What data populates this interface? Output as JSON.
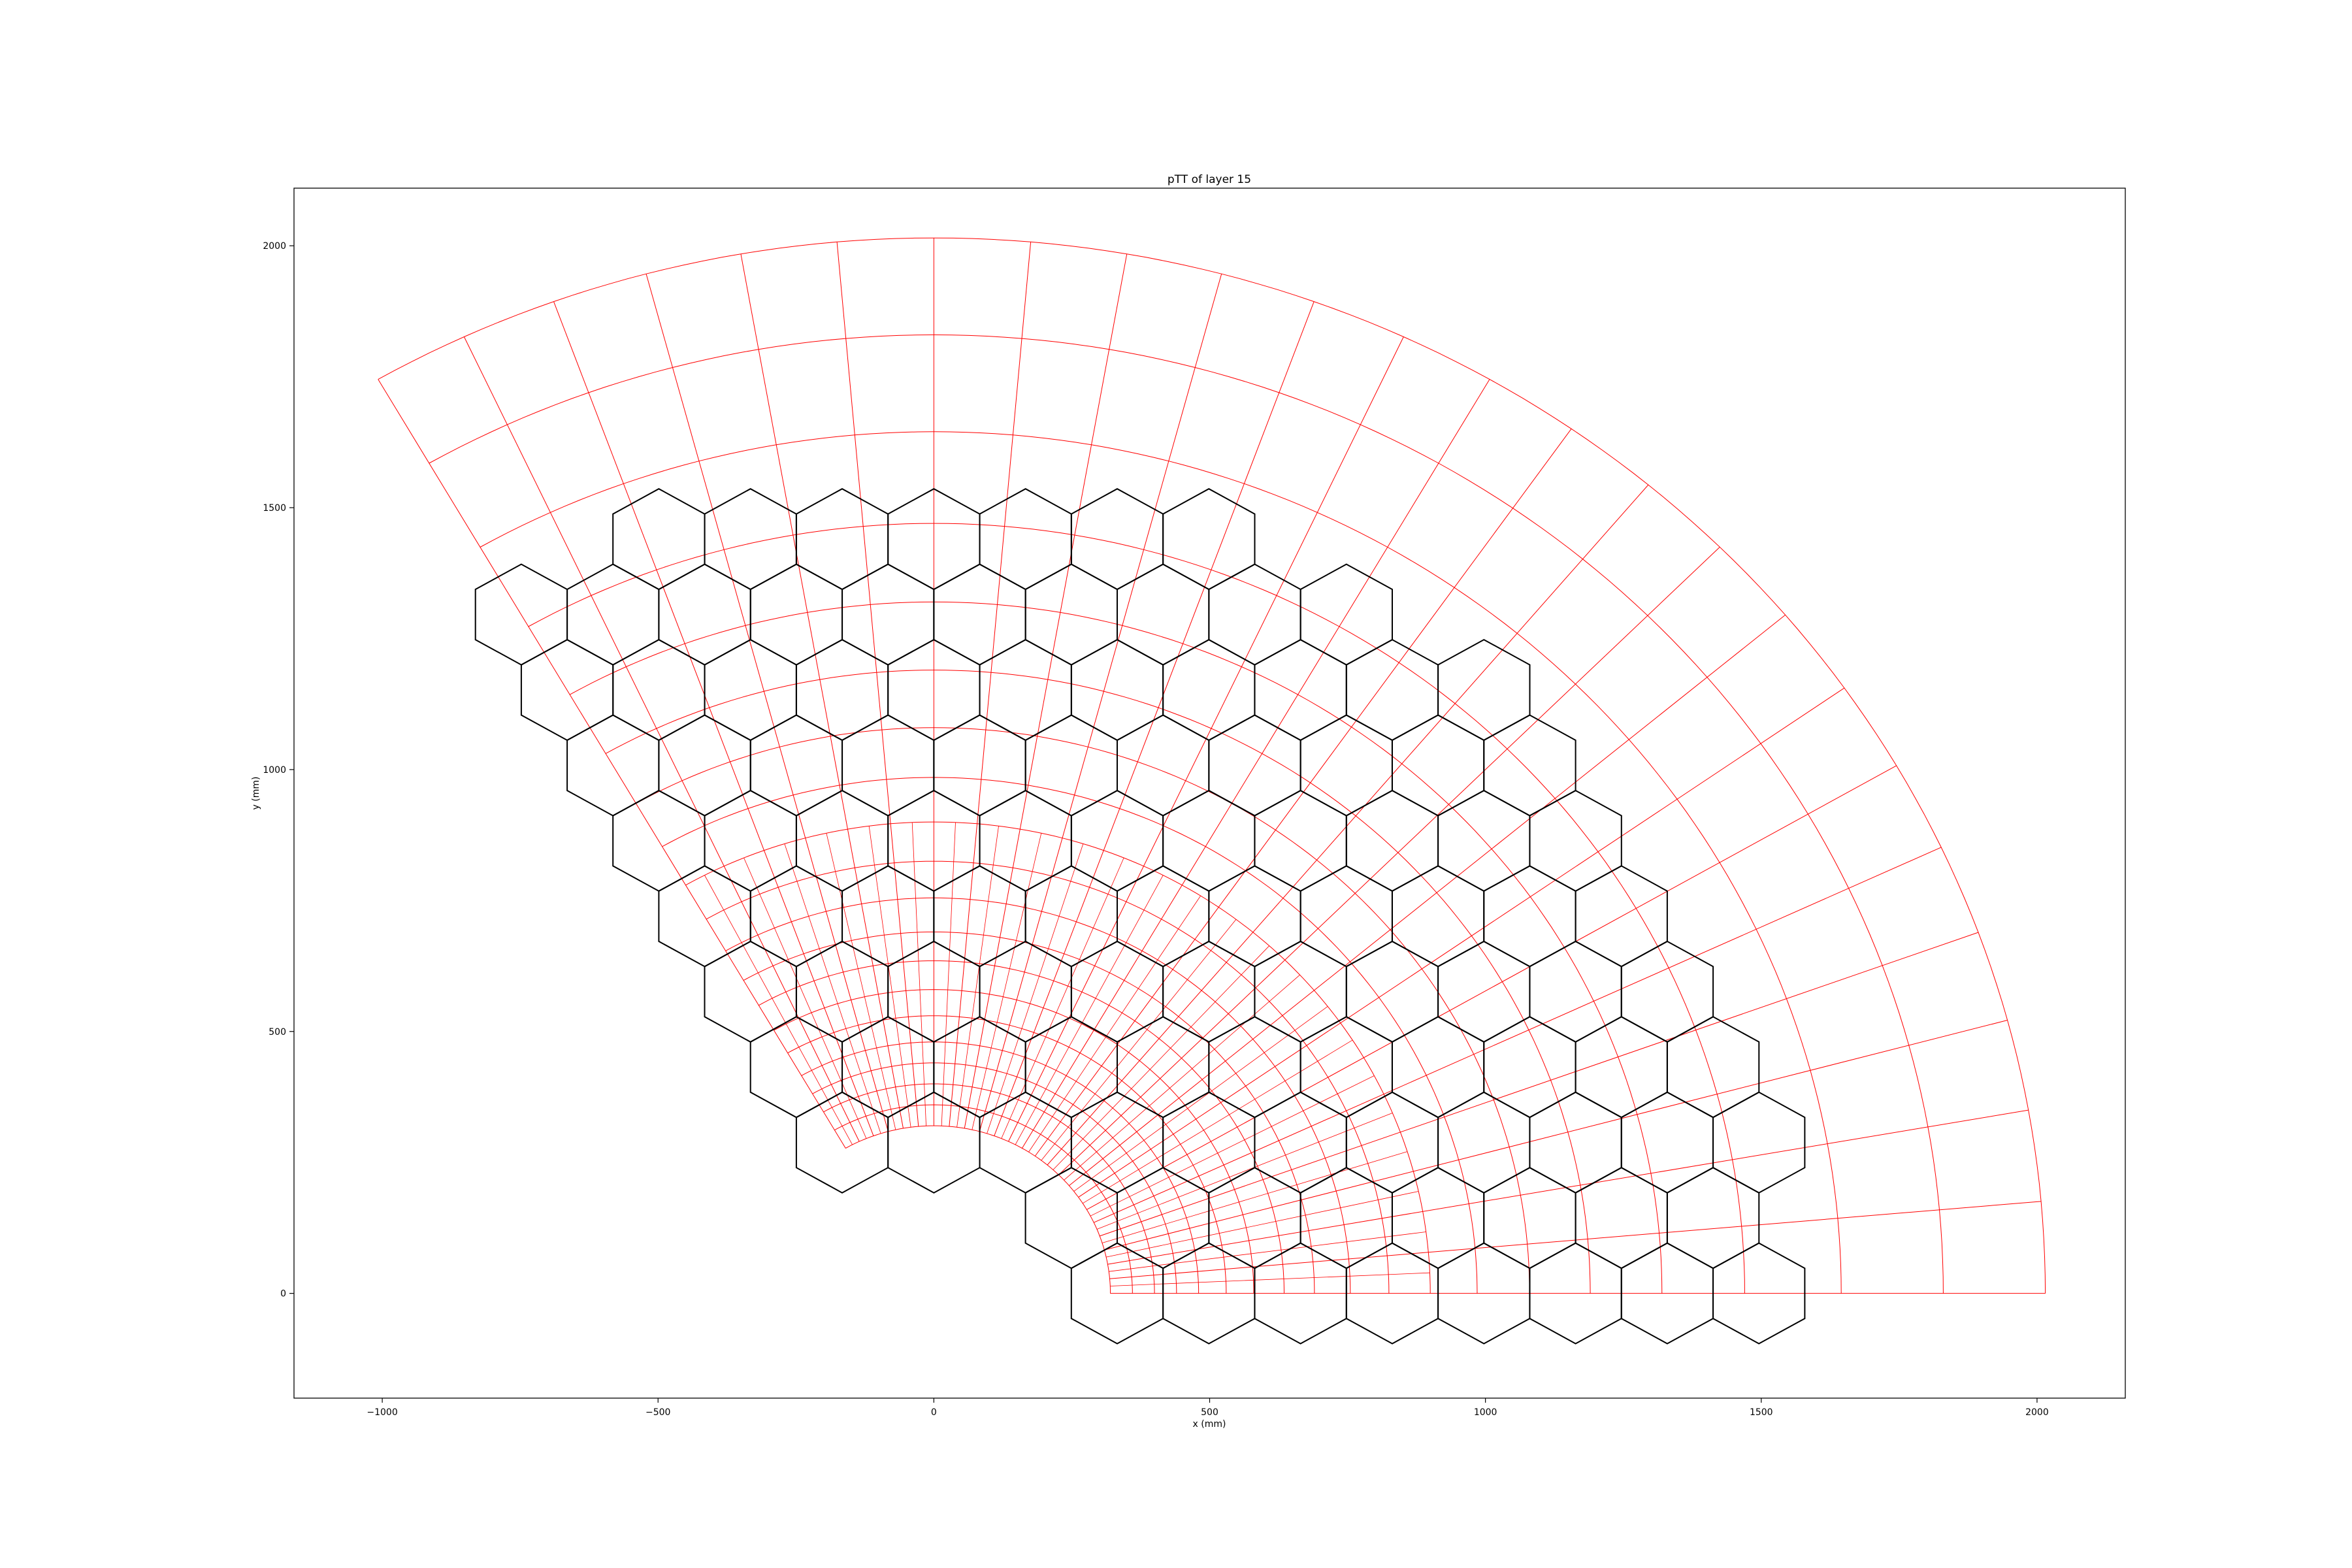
{
  "chart_data": {
    "type": "scatter",
    "title": "pTT of layer 15",
    "xlabel": "x (mm)",
    "ylabel": "y (mm)",
    "xlim": [
      -1160,
      2160
    ],
    "ylim": [
      -200,
      2110
    ],
    "xticks": [
      -1000,
      -500,
      0,
      500,
      1000,
      1500,
      2000
    ],
    "xtick_labels": [
      "−1000",
      "−500",
      "0",
      "500",
      "1000",
      "1500",
      "2000"
    ],
    "yticks": [
      0,
      500,
      1000,
      1500,
      2000
    ],
    "ytick_labels": [
      "0",
      "500",
      "1000",
      "1500",
      "2000"
    ],
    "grid": false,
    "colors": {
      "trigger_cell_grid": "#ff0000",
      "module_outline": "#000000",
      "axes": "#000000"
    },
    "series": [
      {
        "kind": "polar-grid",
        "color": "#ff0000",
        "radii": [
          320,
          360,
          400,
          440,
          480,
          530,
          580,
          635,
          690,
          755,
          825,
          900,
          985,
          1080,
          1190,
          1320,
          1470,
          1645,
          1830,
          2015
        ],
        "phi_min_deg": 0,
        "phi_max_deg": 120,
        "phi_step_deg": 5
      },
      {
        "kind": "hexagon-modules",
        "color": "#000000",
        "hex_circumradius": 96,
        "hex_pitch_x": 83.1,
        "hex_pitch_y": 144,
        "inner_radius": 320,
        "outer_radius": 1560,
        "phi_min_deg": 0,
        "phi_max_deg": 120,
        "x_max": 1520,
        "y_min": -95
      }
    ]
  }
}
